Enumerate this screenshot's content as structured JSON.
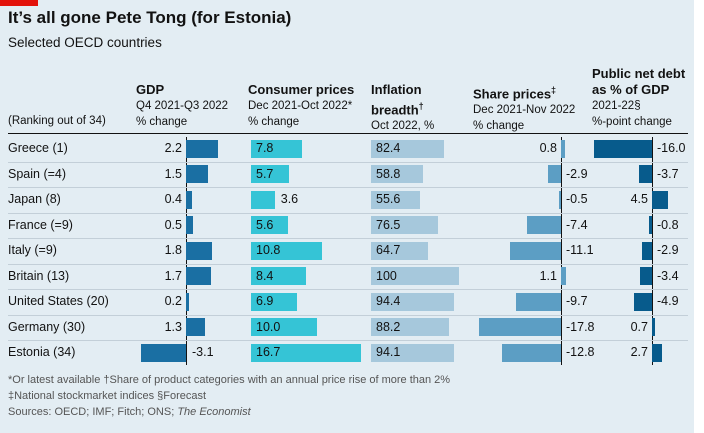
{
  "title": "It’s all gone Pete Tong (for Estonia)",
  "subtitle": "Selected OECD countries",
  "ranking_note": "(Ranking out of 34)",
  "colors": {
    "gdp": "#1a6fa3",
    "consumer_prices": "#35c4d6",
    "inflation_breadth": "#a6c8dc",
    "share_prices": "#5c9ec4",
    "public_debt": "#075b8c"
  },
  "columns": [
    {
      "id": "gdp",
      "title": "GDP",
      "sub1": "Q4 2021-Q3 2022",
      "sub2": "% change"
    },
    {
      "id": "consumer_prices",
      "title": "Consumer prices",
      "sub1": "Dec 2021-Oct 2022*",
      "sub2": "% change"
    },
    {
      "id": "inflation_breadth",
      "title": "Inflation",
      "title2": "breadth",
      "mark": "†",
      "sub1": "Oct 2022, %"
    },
    {
      "id": "share_prices",
      "title": "Share prices",
      "mark": "‡",
      "sub1": "Dec 2021-Nov 2022",
      "sub2": "% change"
    },
    {
      "id": "public_debt",
      "title": "Public net debt",
      "title2": "as % of GDP",
      "sub1": "2021-22§",
      "sub2": "%-point change"
    }
  ],
  "chart_data": {
    "type": "table",
    "rows": [
      {
        "country": "Greece (1)",
        "gdp": 2.2,
        "consumer_prices": 7.8,
        "inflation_breadth": 82.4,
        "share_prices": 0.8,
        "public_debt": -16.0
      },
      {
        "country": "Spain (=4)",
        "gdp": 1.5,
        "consumer_prices": 5.7,
        "inflation_breadth": 58.8,
        "share_prices": -2.9,
        "public_debt": -3.7
      },
      {
        "country": "Japan (8)",
        "gdp": 0.4,
        "consumer_prices": 3.6,
        "inflation_breadth": 55.6,
        "share_prices": -0.5,
        "public_debt": 4.5
      },
      {
        "country": "France (=9)",
        "gdp": 0.5,
        "consumer_prices": 5.6,
        "inflation_breadth": 76.5,
        "share_prices": -7.4,
        "public_debt": -0.8
      },
      {
        "country": "Italy (=9)",
        "gdp": 1.8,
        "consumer_prices": 10.8,
        "inflation_breadth": 64.7,
        "share_prices": -11.1,
        "public_debt": -2.9
      },
      {
        "country": "Britain (13)",
        "gdp": 1.7,
        "consumer_prices": 8.4,
        "inflation_breadth": 100,
        "share_prices": 1.1,
        "public_debt": -3.4
      },
      {
        "country": "United States (20)",
        "gdp": 0.2,
        "consumer_prices": 6.9,
        "inflation_breadth": 94.4,
        "share_prices": -9.7,
        "public_debt": -4.9
      },
      {
        "country": "Germany (30)",
        "gdp": 1.3,
        "consumer_prices": 10.0,
        "inflation_breadth": 88.2,
        "share_prices": -17.8,
        "public_debt": 0.7
      },
      {
        "country": "Estonia (34)",
        "gdp": -3.1,
        "consumer_prices": 16.7,
        "inflation_breadth": 94.1,
        "share_prices": -12.8,
        "public_debt": 2.7
      }
    ]
  },
  "footnotes": {
    "line1": "*Or latest available   †Share of product categories with an annual price rise of more than 2%",
    "line2": "‡National stockmarket indices   §Forecast",
    "sources_prefix": "Sources: OECD; IMF; Fitch; ONS; ",
    "sources_italic": "The Economist"
  }
}
